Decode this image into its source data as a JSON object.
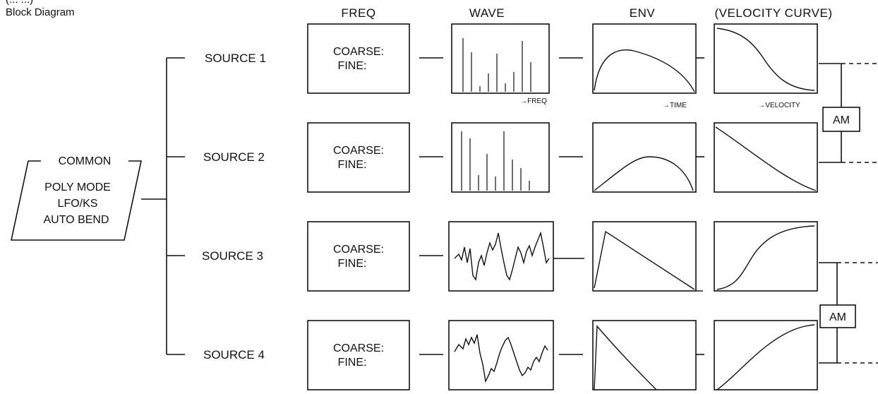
{
  "title_partial": "(... ...)",
  "title": "Block Diagram",
  "headers": {
    "freq": "FREQ",
    "wave": "WAVE",
    "env": "ENV",
    "velocity": "(VELOCITY CURVE)"
  },
  "common": {
    "title": "COMMON",
    "lines": [
      "POLY MODE",
      "LFO/KS",
      "AUTO BEND"
    ]
  },
  "sources": [
    {
      "label": "SOURCE 1",
      "coarse": "COARSE:",
      "fine": "FINE:"
    },
    {
      "label": "SOURCE 2",
      "coarse": "COARSE:",
      "fine": "FINE:"
    },
    {
      "label": "SOURCE 3",
      "coarse": "COARSE:",
      "fine": "FINE:"
    },
    {
      "label": "SOURCE 4",
      "coarse": "COARSE:",
      "fine": "FINE:"
    }
  ],
  "axis_labels": {
    "freq": "→FREQ",
    "time": "→TIME",
    "velocity": "→VELOCITY"
  },
  "am_label": "AM"
}
